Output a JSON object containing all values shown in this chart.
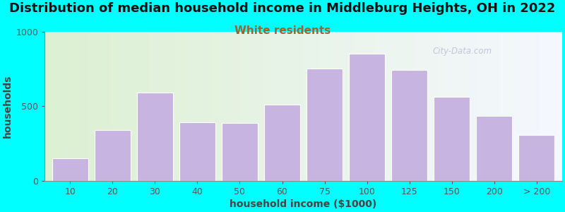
{
  "title": "Distribution of median household income in Middleburg Heights, OH in 2022",
  "subtitle": "White residents",
  "xlabel": "household income ($1000)",
  "ylabel": "households",
  "bg_color": "#00FFFF",
  "bar_color": "#c8b4e0",
  "bar_edge_color": "#ffffff",
  "categories": [
    "10",
    "20",
    "30",
    "40",
    "50",
    "60",
    "75",
    "100",
    "125",
    "150",
    "200",
    "> 200"
  ],
  "values": [
    150,
    340,
    590,
    395,
    390,
    510,
    755,
    855,
    745,
    565,
    435,
    305
  ],
  "ylim": [
    0,
    1000
  ],
  "yticks": [
    0,
    500,
    1000
  ],
  "title_fontsize": 13,
  "subtitle_fontsize": 11,
  "subtitle_color": "#996633",
  "axis_label_fontsize": 10,
  "tick_fontsize": 9,
  "watermark": "City-Data.com"
}
